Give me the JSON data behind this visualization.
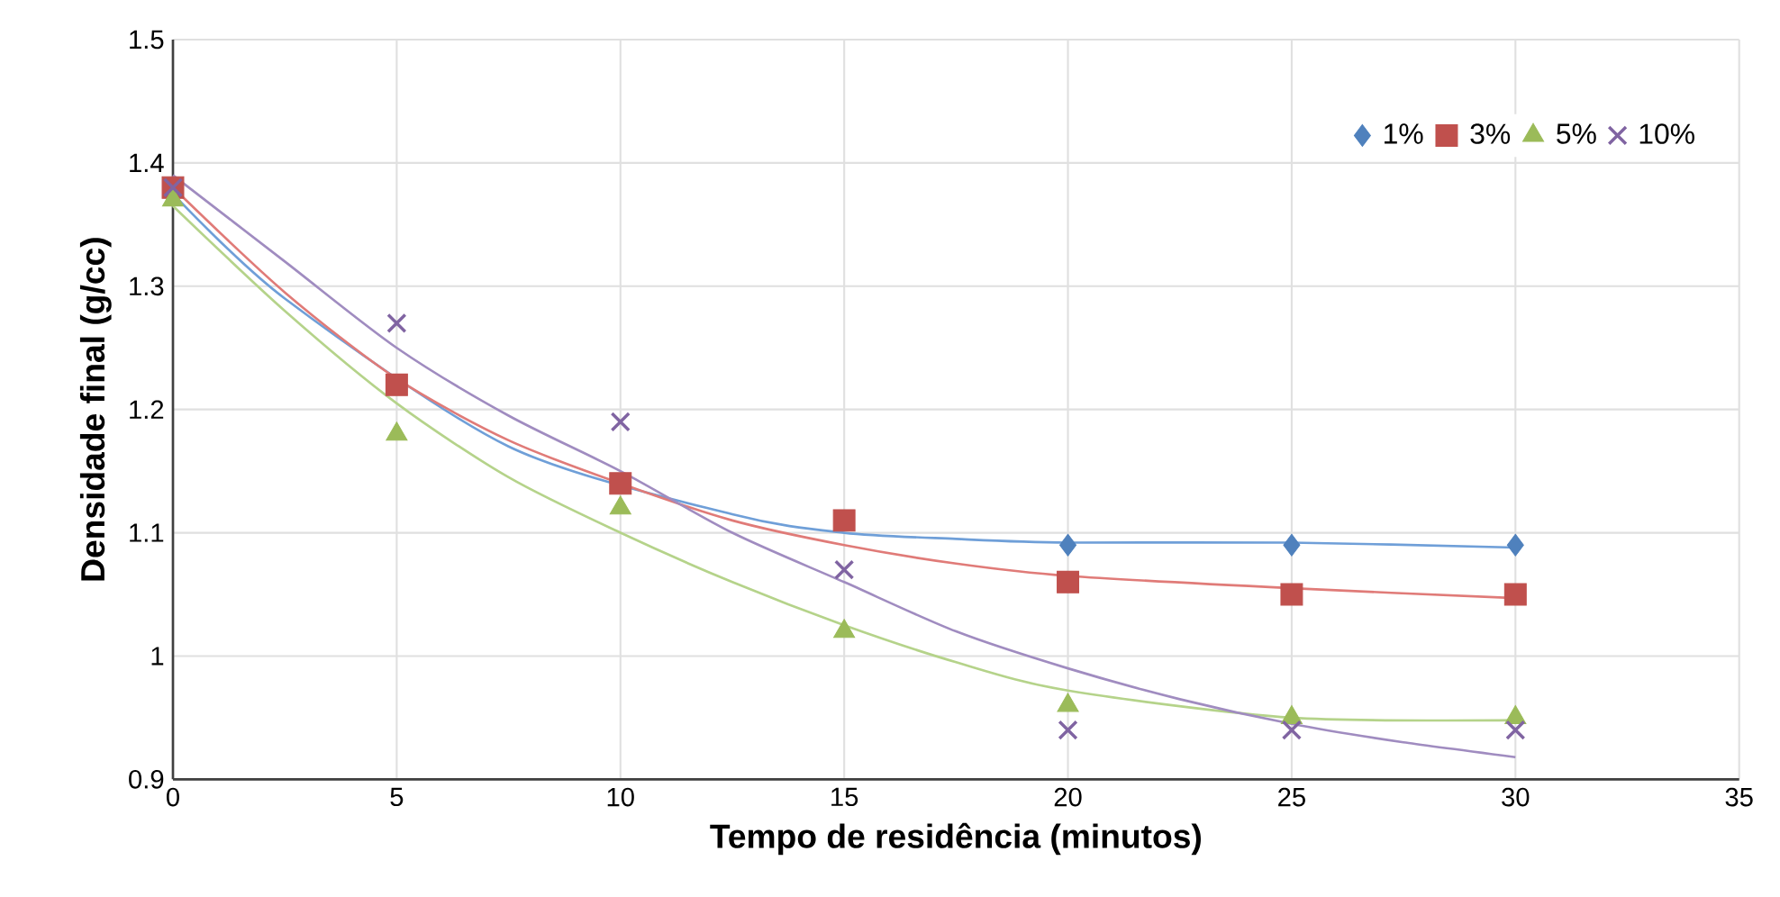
{
  "chart_data": {
    "type": "scatter",
    "xlabel": "Tempo de residência (minutos)",
    "ylabel": "Densidade final (g/cc)",
    "x": [
      0,
      5,
      10,
      15,
      20,
      25,
      30
    ],
    "xlim": [
      0,
      35
    ],
    "xticks": [
      0,
      5,
      10,
      15,
      20,
      25,
      30,
      35
    ],
    "ylim": [
      0.9,
      1.5
    ],
    "yticks": [
      0.9,
      1,
      1.1,
      1.2,
      1.3,
      1.4,
      1.5
    ],
    "grid": true,
    "legend": "top right",
    "series": [
      {
        "name": "1%",
        "color": "#4f81bd",
        "marker": "diamond",
        "values": [
          null,
          null,
          null,
          null,
          1.09,
          1.09,
          1.09
        ]
      },
      {
        "name": "3%",
        "color": "#c0504d",
        "marker": "square",
        "values": [
          1.38,
          1.22,
          1.14,
          1.11,
          1.06,
          1.05,
          1.05
        ]
      },
      {
        "name": "5%",
        "color": "#9bbb59",
        "marker": "triangle",
        "values": [
          1.37,
          1.18,
          1.12,
          1.02,
          0.96,
          0.95,
          0.95
        ]
      },
      {
        "name": "10%",
        "color": "#8064a2",
        "marker": "cross",
        "values": [
          1.38,
          1.27,
          1.19,
          1.07,
          0.94,
          0.94,
          0.94
        ]
      },
      {
        "type": "line",
        "color": "#6f9fd8",
        "x": [
          0,
          2.5,
          7.5,
          12.5,
          15,
          17.5,
          20,
          25,
          30
        ],
        "values": [
          1.375,
          1.29,
          1.17,
          1.115,
          1.1,
          1.095,
          1.092,
          1.092,
          1.088
        ]
      },
      {
        "type": "line",
        "color": "#e07b78",
        "x": [
          0,
          2.5,
          5,
          7.5,
          10,
          12.5,
          15,
          17.5,
          20,
          25,
          30
        ],
        "values": [
          1.38,
          1.295,
          1.225,
          1.175,
          1.14,
          1.11,
          1.09,
          1.075,
          1.065,
          1.055,
          1.047
        ]
      },
      {
        "type": "line",
        "color": "#b5d38a",
        "x": [
          0,
          2.5,
          5,
          7.5,
          10,
          12.5,
          15,
          17.5,
          20,
          25,
          30
        ],
        "values": [
          1.365,
          1.28,
          1.205,
          1.145,
          1.1,
          1.06,
          1.025,
          0.995,
          0.972,
          0.95,
          0.948
        ]
      },
      {
        "type": "line",
        "color": "#a08cc0",
        "x": [
          0,
          2.5,
          5,
          7.5,
          10,
          12.5,
          15,
          17.5,
          20,
          22.5,
          25,
          27.5,
          30
        ],
        "values": [
          1.39,
          1.32,
          1.25,
          1.195,
          1.15,
          1.1,
          1.06,
          1.02,
          0.99,
          0.965,
          0.945,
          0.93,
          0.918
        ]
      }
    ]
  }
}
